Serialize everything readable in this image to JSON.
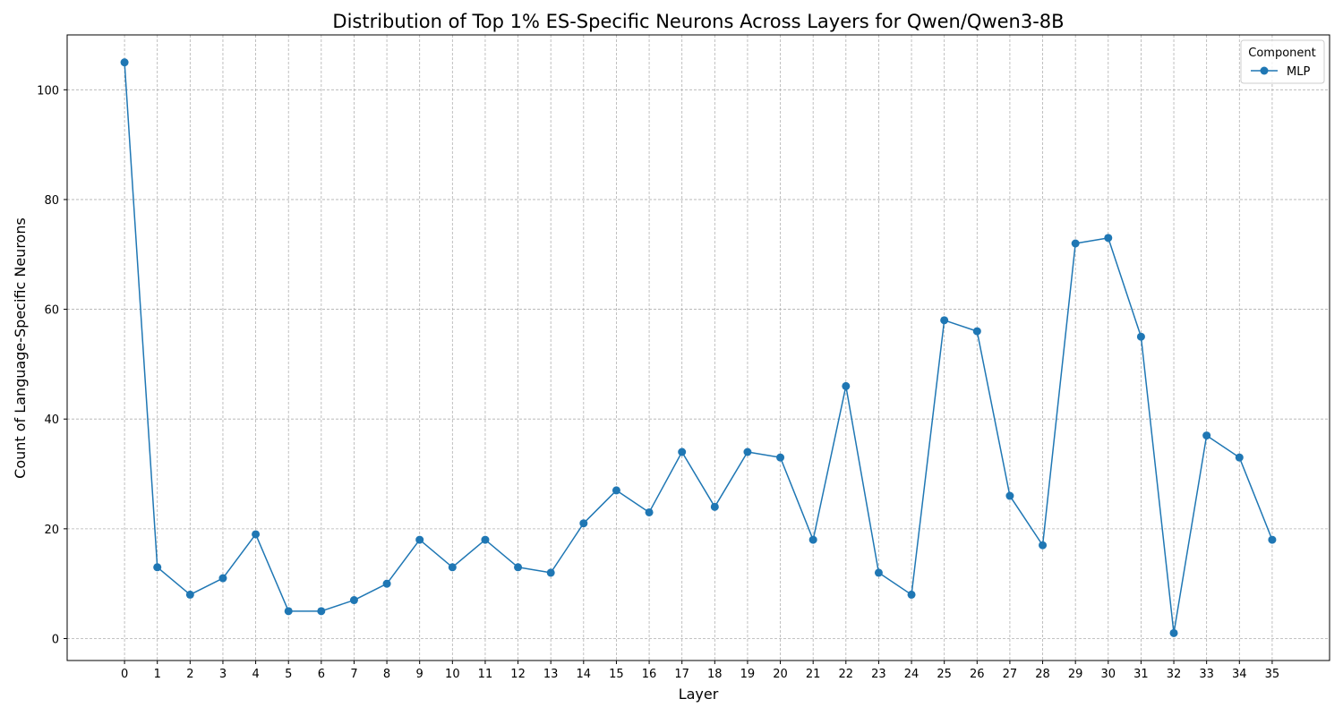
{
  "chart_data": {
    "type": "line",
    "title": "Distribution of Top 1% ES-Specific Neurons Across Layers for Qwen/Qwen3-8B",
    "xlabel": "Layer",
    "ylabel": "Count of Language-Specific Neurons",
    "x": [
      0,
      1,
      2,
      3,
      4,
      5,
      6,
      7,
      8,
      9,
      10,
      11,
      12,
      13,
      14,
      15,
      16,
      17,
      18,
      19,
      20,
      21,
      22,
      23,
      24,
      25,
      26,
      27,
      28,
      29,
      30,
      31,
      32,
      33,
      34,
      35
    ],
    "xticks": [
      "0",
      "1",
      "2",
      "3",
      "4",
      "5",
      "6",
      "7",
      "8",
      "9",
      "10",
      "11",
      "12",
      "13",
      "14",
      "15",
      "16",
      "17",
      "18",
      "19",
      "20",
      "21",
      "22",
      "23",
      "24",
      "25",
      "26",
      "27",
      "28",
      "29",
      "30",
      "31",
      "32",
      "33",
      "34",
      "35"
    ],
    "yticks": [
      "0",
      "20",
      "40",
      "60",
      "80",
      "100"
    ],
    "ylim": [
      -4,
      110
    ],
    "xlim": [
      -1.75,
      36.75
    ],
    "grid": true,
    "legend": {
      "title": "Component",
      "placement": "top-right"
    },
    "series": [
      {
        "name": "MLP",
        "color": "#1f77b4",
        "marker": "circle",
        "values": [
          105,
          13,
          8,
          11,
          19,
          5,
          5,
          7,
          10,
          18,
          13,
          18,
          13,
          12,
          21,
          27,
          23,
          34,
          24,
          34,
          33,
          18,
          46,
          12,
          8,
          58,
          56,
          26,
          17,
          72,
          73,
          55,
          1,
          37,
          33,
          18
        ]
      }
    ]
  }
}
